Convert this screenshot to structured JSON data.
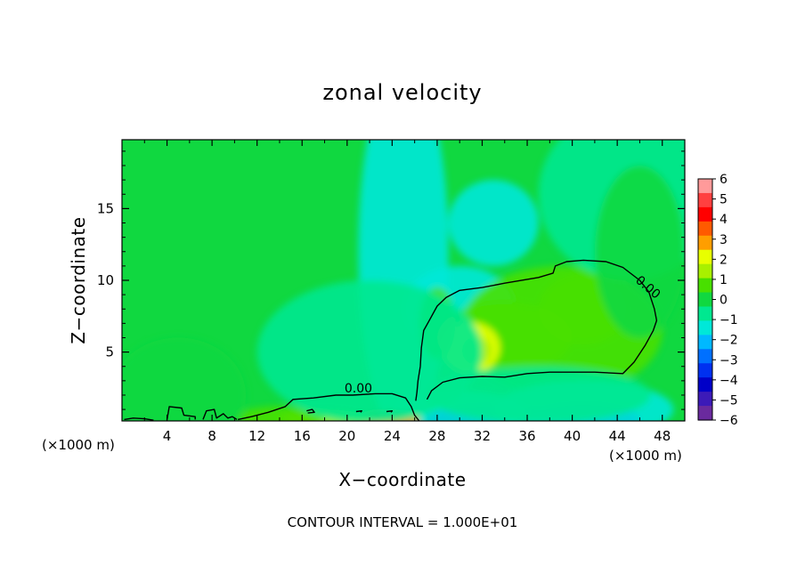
{
  "chart_data": {
    "type": "heatmap",
    "title": "zonal velocity",
    "xlabel": "X−coordinate",
    "ylabel": "Z−coordinate",
    "x_unit_left": "(×1000 m)",
    "x_unit_right": "(×1000 m)",
    "xlim": [
      0,
      50
    ],
    "ylim": [
      0.2,
      19.8
    ],
    "x_ticks": [
      4,
      8,
      12,
      16,
      20,
      24,
      28,
      32,
      36,
      40,
      44,
      48
    ],
    "y_ticks": [
      5,
      10,
      15
    ],
    "footer": "CONTOUR INTERVAL = 1.000E+01",
    "contour_label": "0.00",
    "contour_label_positions": [
      [
        21,
        2.2
      ],
      [
        46.5,
        9.3
      ]
    ],
    "colorbar": {
      "labels": [
        6,
        5,
        4,
        3,
        2,
        1,
        0,
        -1,
        -2,
        -3,
        -4,
        -5,
        -6
      ],
      "colors": [
        "#ff9a9a",
        "#ff4040",
        "#ff0000",
        "#ff5a00",
        "#ff9e00",
        "#e8ff00",
        "#a8f000",
        "#48e000",
        "#10d840",
        "#00e890",
        "#00e8d8",
        "#00b8ff",
        "#0070ff",
        "#0030f0",
        "#0000c8",
        "#3c1ab8",
        "#6a2a9e"
      ]
    },
    "series": [
      {
        "name": "blob",
        "values": [
          [
            25,
            12,
            4,
            13,
            -1.6
          ],
          [
            33,
            14,
            4,
            3,
            -1.7
          ],
          [
            30,
            8,
            5,
            3,
            -1.2
          ],
          [
            39,
            6.5,
            9,
            4.5,
            1.1
          ],
          [
            34,
            6,
            6,
            2.5,
            0.8
          ],
          [
            31,
            5.3,
            2.6,
            1.8,
            2.4
          ],
          [
            31.5,
            5.1,
            1.3,
            1,
            1.5
          ],
          [
            41,
            8,
            4,
            2.5,
            0.7
          ],
          [
            28,
            7,
            1.6,
            2.5,
            0.5
          ],
          [
            33,
            0.25,
            6,
            1.1,
            -4.8
          ],
          [
            41,
            0.25,
            5,
            1.2,
            -3.6
          ],
          [
            30,
            0.8,
            6,
            1.5,
            -1.8
          ],
          [
            41,
            1,
            8,
            2,
            -1.5
          ],
          [
            37,
            2,
            10,
            2,
            -0.8
          ],
          [
            23.5,
            0.25,
            3,
            0.6,
            3.2
          ],
          [
            18,
            0.3,
            4,
            0.7,
            1.5
          ],
          [
            14,
            0.4,
            4,
            0.8,
            0.6
          ],
          [
            5,
            2,
            6,
            4,
            -0.3
          ],
          [
            22,
            5,
            10,
            5,
            -0.5
          ],
          [
            45,
            16,
            8,
            6,
            -0.5
          ],
          [
            46,
            12,
            4,
            6,
            0.2
          ]
        ]
      },
      {
        "name": "contour-zero-main",
        "values": [
          [
            27.1,
            1.7
          ],
          [
            27.5,
            2.3
          ],
          [
            28.5,
            2.9
          ],
          [
            30,
            3.2
          ],
          [
            32,
            3.3
          ],
          [
            34,
            3.25
          ],
          [
            36,
            3.5
          ],
          [
            38,
            3.6
          ],
          [
            40,
            3.6
          ],
          [
            42,
            3.6
          ],
          [
            44.5,
            3.5
          ],
          [
            45.5,
            4.3
          ],
          [
            46.5,
            5.5
          ],
          [
            47.2,
            6.5
          ],
          [
            47.5,
            7.2
          ],
          [
            47.3,
            8
          ],
          [
            46.8,
            9.2
          ],
          [
            46,
            10
          ],
          [
            44.5,
            10.9
          ],
          [
            43,
            11.3
          ],
          [
            41,
            11.4
          ],
          [
            39.5,
            11.3
          ],
          [
            38.5,
            11
          ],
          [
            38.3,
            10.5
          ],
          [
            37,
            10.2
          ],
          [
            34,
            9.8
          ],
          [
            32,
            9.5
          ],
          [
            30,
            9.3
          ],
          [
            28.8,
            8.8
          ],
          [
            28,
            8.2
          ],
          [
            27.3,
            7.2
          ],
          [
            26.8,
            6.5
          ],
          [
            26.6,
            5.3
          ],
          [
            26.5,
            4
          ],
          [
            26.3,
            3
          ],
          [
            26.2,
            2.2
          ],
          [
            26.1,
            1.6
          ]
        ]
      },
      {
        "name": "contour-zero-low",
        "values": [
          [
            10.3,
            0.3
          ],
          [
            11.5,
            0.5
          ],
          [
            13,
            0.8
          ],
          [
            14.5,
            1.2
          ],
          [
            15.2,
            1.7
          ],
          [
            17,
            1.8
          ],
          [
            19,
            2.0
          ],
          [
            20.5,
            2.0
          ],
          [
            22.5,
            2.1
          ],
          [
            24,
            2.1
          ],
          [
            25.2,
            1.8
          ],
          [
            25.7,
            1.2
          ],
          [
            26.0,
            0.6
          ],
          [
            26.4,
            0.2
          ]
        ]
      },
      {
        "name": "contour-zero-bumps",
        "values": [
          [
            [
              4,
              0.3
            ],
            [
              4.2,
              1.2
            ],
            [
              5.3,
              1.1
            ],
            [
              5.5,
              0.6
            ],
            [
              6.5,
              0.5
            ],
            [
              6.5,
              0.3
            ]
          ],
          [
            [
              7.2,
              0.3
            ],
            [
              7.5,
              0.9
            ],
            [
              8.2,
              1.0
            ],
            [
              8.4,
              0.4
            ],
            [
              9.0,
              0.7
            ],
            [
              9.4,
              0.4
            ],
            [
              9.8,
              0.5
            ],
            [
              10.2,
              0.3
            ]
          ],
          [
            [
              0.2,
              0.3
            ],
            [
              1.0,
              0.4
            ],
            [
              2.0,
              0.35
            ],
            [
              2.8,
              0.25
            ]
          ],
          [
            [
              16.4,
              0.9
            ],
            [
              16.9,
              1.0
            ],
            [
              17.1,
              0.8
            ],
            [
              16.5,
              0.75
            ]
          ],
          [
            [
              20.8,
              0.85
            ],
            [
              21.3,
              0.9
            ],
            [
              21.2,
              0.8
            ]
          ],
          [
            [
              23.5,
              0.85
            ],
            [
              24.0,
              0.9
            ],
            [
              23.9,
              0.8
            ]
          ]
        ]
      }
    ]
  }
}
